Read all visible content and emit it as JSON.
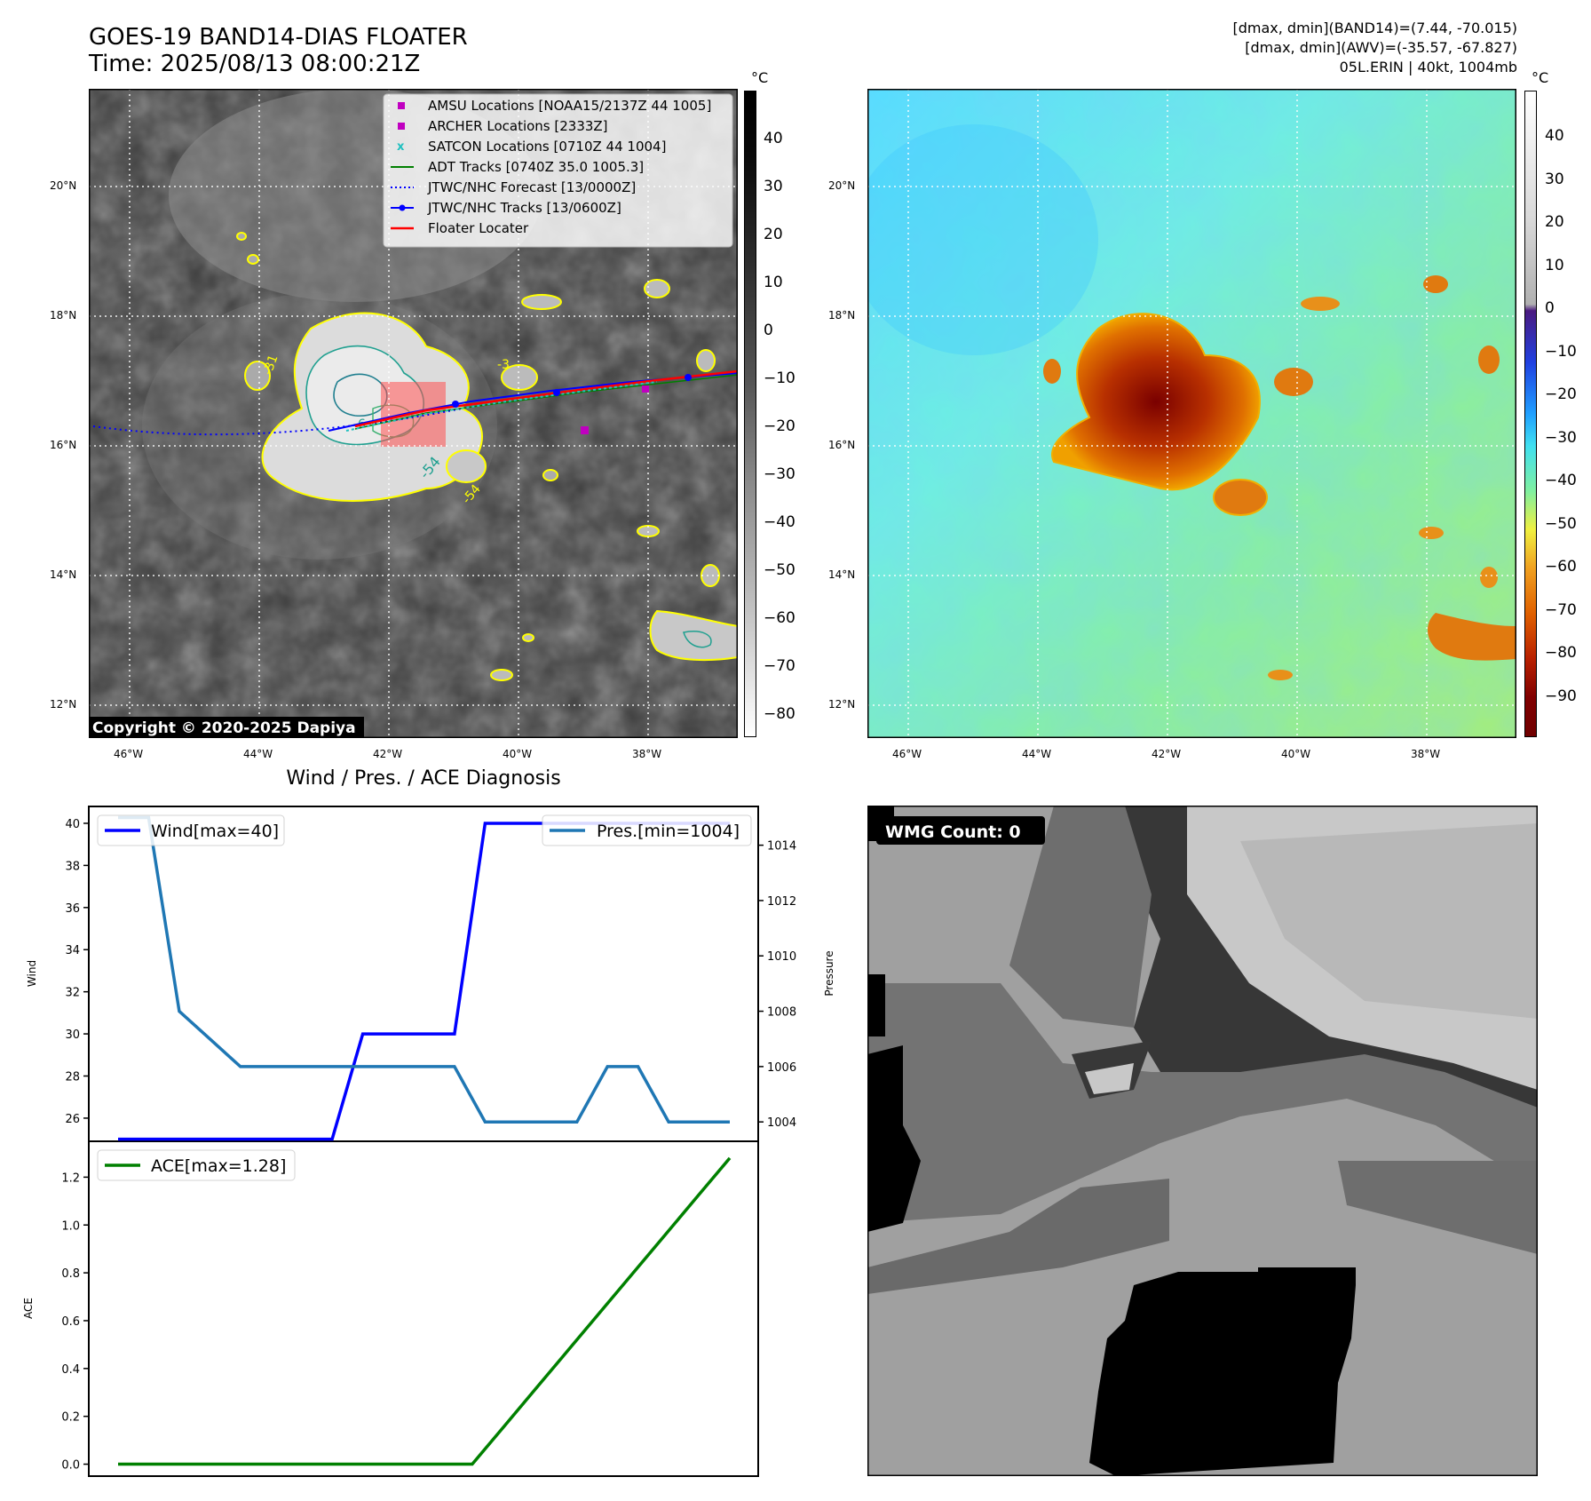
{
  "header": {
    "title_line1": "GOES-19 BAND14-DIAS FLOATER",
    "title_line2": "Time: 2025/08/13 08:00:21Z",
    "info_line1": "[dmax, dmin](BAND14)=(7.44, -70.015)",
    "info_line2": "[dmax, dmin](AWV)=(-35.57, -67.827)",
    "info_line3": "05L.ERIN | 40kt, 1004mb"
  },
  "ir_map": {
    "lat_labels": [
      "20°N",
      "18°N",
      "16°N",
      "14°N",
      "12°N"
    ],
    "lon_labels": [
      "46°W",
      "44°W",
      "42°W",
      "40°W",
      "38°W"
    ],
    "legend": [
      {
        "label": "AMSU Locations [NOAA15/2137Z 44 1005]",
        "marker": "square",
        "color": "#c000c0"
      },
      {
        "label": "ARCHER Locations [2333Z]",
        "marker": "square",
        "color": "#c000c0"
      },
      {
        "label": "SATCON Locations [0710Z 44 1004]",
        "marker": "x",
        "color": "#20c0c0"
      },
      {
        "label": "ADT Tracks [0740Z 35.0 1005.3]",
        "marker": "line",
        "color": "#008000"
      },
      {
        "label": "JTWC/NHC Forecast [13/0000Z]",
        "marker": "dotted",
        "color": "#0000ff"
      },
      {
        "label": "JTWC/NHC Tracks [13/0600Z]",
        "marker": "line-dot",
        "color": "#0000ff"
      },
      {
        "label": "Floater Locater",
        "marker": "line",
        "color": "#ff0000"
      }
    ],
    "contour_labels": [
      "-31",
      "-54",
      "-54",
      "-6",
      "-3"
    ],
    "copyright": "Copyright © 2020-2025 Dapiya",
    "colorbar_unit": "°C",
    "colorbar_ticks": [
      "40",
      "30",
      "20",
      "10",
      "0",
      "−10",
      "−20",
      "−30",
      "−40",
      "−50",
      "−60",
      "−70",
      "−80"
    ]
  },
  "wv_map": {
    "lat_labels": [
      "20°N",
      "18°N",
      "16°N",
      "14°N",
      "12°N"
    ],
    "lon_labels": [
      "46°W",
      "44°W",
      "42°W",
      "40°W",
      "38°W"
    ],
    "colorbar_unit": "°C",
    "colorbar_ticks": [
      "40",
      "30",
      "20",
      "10",
      "0",
      "−10",
      "−20",
      "−30",
      "−40",
      "−50",
      "−60",
      "−70",
      "−80",
      "−90"
    ]
  },
  "diag": {
    "title": "Wind / Pres. / ACE Diagnosis",
    "wind_ylabel": "Wind",
    "pres_ylabel": "Pressure",
    "ace_ylabel": "ACE",
    "legend_wind": "Wind[max=40]",
    "legend_pres": "Pres.[min=1004]",
    "legend_ace": "ACE[max=1.28]",
    "colors": {
      "wind": "#0000ff",
      "pres": "#1f77b4",
      "ace": "#008000"
    }
  },
  "wmg": {
    "label": "WMG Count: 0"
  },
  "chart_data": [
    {
      "type": "line",
      "title": "Wind / Pres. / ACE Diagnosis",
      "ylabel": "Wind",
      "ylim": [
        24.9,
        40.8
      ],
      "yticks": [
        26,
        28,
        30,
        32,
        34,
        36,
        38,
        40
      ],
      "series": [
        {
          "name": "Wind[max=40]",
          "values": [
            25,
            25,
            25,
            25,
            25,
            25,
            25,
            25,
            30,
            30,
            30,
            30,
            40,
            40,
            40,
            40,
            40,
            40,
            40,
            40,
            40
          ]
        }
      ]
    },
    {
      "type": "line",
      "ylabel": "Pressure",
      "ylim": [
        1003.3,
        1015.4
      ],
      "yticks": [
        1004,
        1006,
        1008,
        1010,
        1012,
        1014
      ],
      "series": [
        {
          "name": "Pres.[min=1004]",
          "values": [
            1015,
            1015,
            1008,
            1007,
            1006,
            1006,
            1006,
            1006,
            1006,
            1006,
            1006,
            1006,
            1004,
            1004,
            1004,
            1004,
            1006,
            1006,
            1004,
            1004,
            1004
          ]
        }
      ]
    },
    {
      "type": "line",
      "ylabel": "ACE",
      "ylim": [
        -0.05,
        1.35
      ],
      "yticks": [
        0.0,
        0.2,
        0.4,
        0.6,
        0.8,
        1.0,
        1.2
      ],
      "series": [
        {
          "name": "ACE[max=1.28]",
          "values": [
            0,
            0,
            0,
            0,
            0,
            0,
            0,
            0,
            0,
            0,
            0,
            0,
            0.16,
            0.32,
            0.48,
            0.64,
            0.8,
            0.96,
            1.12,
            1.28
          ]
        }
      ]
    }
  ]
}
